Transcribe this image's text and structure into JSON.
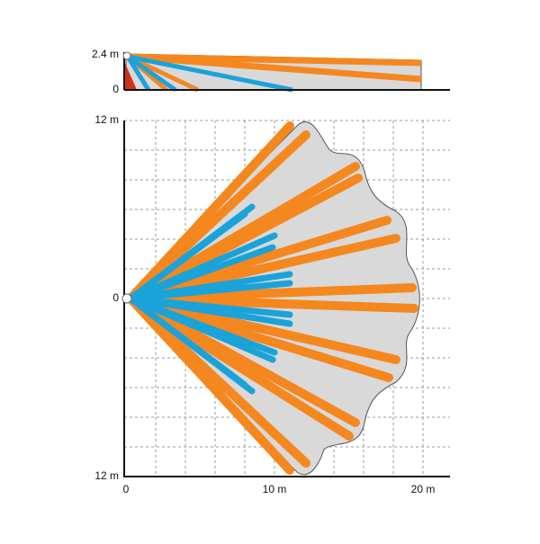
{
  "side_view": {
    "y_labels": [
      "2.4 m",
      "0"
    ]
  },
  "top_view": {
    "y_labels": [
      "12 m",
      "0",
      "12 m"
    ],
    "x_labels": [
      "0",
      "10 m",
      "20 m"
    ]
  }
}
